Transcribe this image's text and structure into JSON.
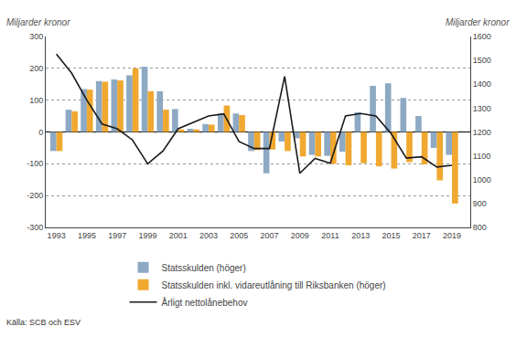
{
  "chart_data": {
    "type": "bar",
    "x": [
      1993,
      1994,
      1995,
      1996,
      1997,
      1998,
      1999,
      2000,
      2001,
      2002,
      2003,
      2004,
      2005,
      2006,
      2007,
      2008,
      2009,
      2010,
      2011,
      2012,
      2013,
      2014,
      2015,
      2016,
      2017,
      2018,
      2019
    ],
    "series": [
      {
        "name": "Statsskulden (höger)",
        "type": "bar",
        "color": "#8da9c4",
        "values": [
          -60,
          70,
          135,
          160,
          165,
          178,
          205,
          128,
          72,
          10,
          25,
          57,
          58,
          -60,
          -130,
          -30,
          -20,
          -72,
          -75,
          -62,
          62,
          145,
          153,
          107,
          50,
          -50,
          -72
        ]
      },
      {
        "name": "Statsskulden inkl. vidareutlåning till Riksbanken (höger)",
        "type": "bar",
        "color": "#f0a830",
        "values": [
          -60,
          65,
          133,
          158,
          162,
          200,
          128,
          70,
          8,
          8,
          23,
          83,
          53,
          -57,
          -55,
          -60,
          -77,
          -77,
          -100,
          -105,
          -98,
          -108,
          -115,
          -95,
          -102,
          -152,
          -225
        ]
      },
      {
        "name": "Årligt nettolånebehov",
        "type": "line",
        "color": "#1a1a1a",
        "values": [
          245,
          185,
          100,
          25,
          10,
          -25,
          -100,
          -60,
          10,
          30,
          50,
          57,
          -30,
          -52,
          -52,
          175,
          -130,
          -83,
          -98,
          50,
          58,
          50,
          -5,
          -82,
          -78,
          -110,
          -105
        ]
      }
    ],
    "xlim": [
      1992.3,
      2020.2
    ],
    "xticks": [
      1993,
      1995,
      1997,
      1999,
      2001,
      2003,
      2005,
      2007,
      2009,
      2011,
      2013,
      2015,
      2017,
      2019
    ],
    "ylim": [
      -300,
      300
    ],
    "yticks": [
      -300,
      -200,
      -100,
      0,
      100,
      200,
      300
    ],
    "y2lim": [
      800,
      1600
    ],
    "y2ticks": [
      800,
      900,
      1000,
      1100,
      1200,
      1300,
      1400,
      1500,
      1600
    ],
    "ylabel": "Miljarder kronor",
    "y2label": "Miljarder kronor",
    "annotations": [
      "Källa: SCB och ESV"
    ],
    "grid": true,
    "legend": "bottom"
  }
}
